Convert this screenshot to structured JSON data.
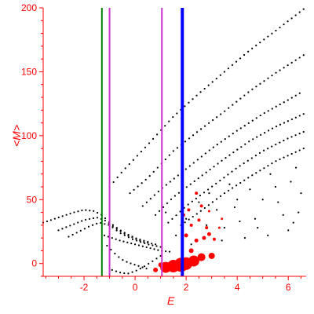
{
  "chart_data": {
    "type": "scatter",
    "title": "",
    "xlabel": "E",
    "ylabel": "<M>",
    "xlim": [
      -3.6,
      6.7
    ],
    "ylim": [
      -10,
      200
    ],
    "xticks": [
      -2,
      0,
      2,
      4,
      6
    ],
    "xtick_labels": [
      "-2",
      "0",
      "2",
      "4",
      "6"
    ],
    "yticks": [
      0,
      50,
      100,
      150,
      200
    ],
    "ytick_labels": [
      "0",
      "50",
      "100",
      "150",
      "200"
    ],
    "grid": false,
    "axis_color": "#ff0000",
    "vertical_lines": [
      {
        "x": -1.3,
        "color": "#008000",
        "width": 2
      },
      {
        "x": -1.0,
        "color": "#cc33cc",
        "width": 2
      },
      {
        "x": 1.05,
        "color": "#cc33cc",
        "width": 2
      },
      {
        "x": 1.85,
        "color": "#0000ff",
        "width": 4
      }
    ],
    "series": [
      {
        "color": "#000000",
        "marker": "dot",
        "curves": [
          {
            "x": [
              -1.0,
              -0.5,
              0.5,
              1.5,
              2.5,
              3.5,
              4.5,
              5.5,
              6.6
            ],
            "y": [
              60,
              72,
              93,
              115,
              133,
              150,
              167,
              182,
              199
            ]
          },
          {
            "x": [
              -0.2,
              0.5,
              1.5,
              2.5,
              3.5,
              4.5,
              5.5,
              6.6
            ],
            "y": [
              55,
              67,
              88,
              104,
              119,
              135,
              149,
              163
            ]
          },
          {
            "x": [
              0.3,
              1.0,
              2.0,
              3.0,
              4.0,
              5.0,
              6.0,
              6.6
            ],
            "y": [
              45,
              58,
              74,
              90,
              104,
              117,
              128,
              135
            ]
          },
          {
            "x": [
              0.8,
              1.5,
              2.5,
              3.5,
              4.5,
              5.5,
              6.6
            ],
            "y": [
              38,
              52,
              67,
              82,
              96,
              107,
              117
            ]
          },
          {
            "x": [
              1.3,
              2.0,
              3.0,
              4.0,
              5.0,
              6.0,
              6.6
            ],
            "y": [
              32,
              45,
              60,
              75,
              88,
              98,
              103
            ]
          },
          {
            "x": [
              1.8,
              2.5,
              3.5,
              4.5,
              5.5,
              6.6
            ],
            "y": [
              30,
              40,
              55,
              68,
              80,
              90
            ]
          },
          {
            "x": [
              -3.6,
              -3.0,
              -2.4,
              -2.0,
              -1.6,
              -1.3,
              -1.0,
              -0.5,
              0.0,
              0.5
            ],
            "y": [
              32,
              36,
              40,
              42,
              41,
              38,
              32,
              25,
              20,
              17
            ]
          },
          {
            "x": [
              -3.0,
              -2.5,
              -2.0,
              -1.5,
              -1.2,
              -0.8,
              -0.3,
              0.3,
              0.8
            ],
            "y": [
              26,
              30,
              34,
              36,
              34,
              28,
              22,
              17,
              15
            ]
          },
          {
            "x": [
              -2.6,
              -2.2,
              -1.8,
              -1.4,
              -1.0,
              -0.6,
              -0.1,
              0.5,
              1.0
            ],
            "y": [
              21,
              25,
              29,
              32,
              30,
              24,
              19,
              15,
              13
            ]
          },
          {
            "x": [
              -1.2,
              -0.6,
              0.0,
              0.6,
              1.0,
              1.5
            ],
            "y": [
              22,
              18,
              15,
              12,
              10,
              9
            ]
          },
          {
            "x": [
              -1.1,
              -0.9,
              -0.7,
              -0.5,
              -0.3,
              0.0,
              0.3,
              0.6
            ],
            "y": [
              14,
              10,
              6,
              3,
              1,
              -1,
              -3,
              -5
            ]
          },
          {
            "x": [
              -0.9,
              -0.6,
              -0.3,
              0.0,
              0.3,
              0.7,
              1.0
            ],
            "y": [
              -5,
              -7,
              -8,
              -6,
              -3,
              2,
              6
            ]
          }
        ],
        "scatter": [
          [
            1.2,
            40
          ],
          [
            1.6,
            22
          ],
          [
            2.2,
            15
          ],
          [
            2.8,
            30
          ],
          [
            3.4,
            18
          ],
          [
            3.9,
            44
          ],
          [
            4.3,
            20
          ],
          [
            4.7,
            35
          ],
          [
            5.2,
            22
          ],
          [
            5.6,
            48
          ],
          [
            6.0,
            26
          ],
          [
            6.4,
            40
          ],
          [
            2.9,
            55
          ],
          [
            3.7,
            62
          ],
          [
            4.5,
            58
          ],
          [
            5.3,
            70
          ],
          [
            6.1,
            64
          ],
          [
            3.2,
            42
          ],
          [
            4.1,
            33
          ],
          [
            5.0,
            50
          ],
          [
            5.8,
            38
          ],
          [
            6.5,
            55
          ],
          [
            2.5,
            48
          ],
          [
            3.5,
            28
          ],
          [
            4.8,
            28
          ],
          [
            5.5,
            60
          ],
          [
            6.3,
            75
          ],
          [
            2.0,
            35
          ],
          [
            4.0,
            50
          ],
          [
            6.2,
            32
          ]
        ]
      },
      {
        "color": "#ff0000",
        "marker": "circle",
        "points": [
          [
            1.2,
            -3,
            7
          ],
          [
            1.5,
            -2,
            8
          ],
          [
            1.8,
            -1,
            9
          ],
          [
            2.0,
            0,
            8
          ],
          [
            2.3,
            2,
            7
          ],
          [
            2.6,
            5,
            5
          ],
          [
            3.0,
            6,
            4
          ],
          [
            0.8,
            -5,
            3
          ],
          [
            1.0,
            -1,
            3
          ],
          [
            2.2,
            10,
            3
          ],
          [
            2.0,
            22,
            2.5
          ],
          [
            2.4,
            18,
            2.5
          ],
          [
            2.7,
            20,
            2.5
          ],
          [
            2.9,
            23,
            2.5
          ],
          [
            3.1,
            19,
            2
          ],
          [
            2.2,
            30,
            2
          ],
          [
            2.5,
            34,
            2
          ],
          [
            2.8,
            28,
            2
          ],
          [
            2.1,
            42,
            2
          ],
          [
            2.6,
            45,
            2
          ],
          [
            1.9,
            38,
            2
          ],
          [
            2.4,
            55,
            2
          ],
          [
            2.9,
            41,
            1.5
          ],
          [
            3.3,
            28,
            1.5
          ],
          [
            3.4,
            35,
            1.5
          ]
        ]
      }
    ]
  }
}
